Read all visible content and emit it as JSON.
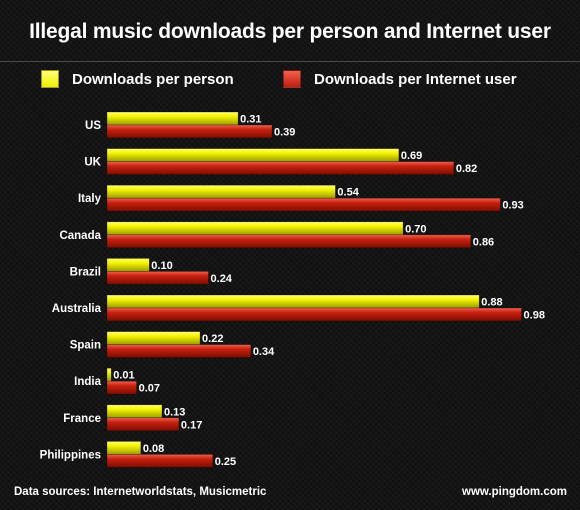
{
  "chart_data": {
    "type": "bar",
    "orientation": "horizontal",
    "title": "Illegal music downloads per person and Internet user",
    "categories": [
      "US",
      "UK",
      "Italy",
      "Canada",
      "Brazil",
      "Australia",
      "Spain",
      "India",
      "France",
      "Philippines"
    ],
    "series": [
      {
        "name": "Downloads per person",
        "color": "#f0f000",
        "values": [
          0.31,
          0.69,
          0.54,
          0.7,
          0.1,
          0.88,
          0.22,
          0.01,
          0.13,
          0.08
        ],
        "labels": [
          "0.31",
          "0.69",
          "0.54",
          "0.70",
          "0.10",
          "0.88",
          "0.22",
          "0.01",
          "0.13",
          "0.08"
        ]
      },
      {
        "name": "Downloads per Internet user",
        "color": "#c21d0e",
        "values": [
          0.39,
          0.82,
          0.93,
          0.86,
          0.24,
          0.98,
          0.34,
          0.07,
          0.17,
          0.25
        ],
        "labels": [
          "0.39",
          "0.82",
          "0.93",
          "0.86",
          "0.24",
          "0.98",
          "0.34",
          "0.07",
          "0.17",
          "0.25"
        ]
      }
    ],
    "xlim": [
      0,
      1
    ],
    "grid": false,
    "legend_position": "top"
  },
  "footer": {
    "source": "Data sources: Internetworldstats, Musicmetric",
    "site": "www.pingdom.com"
  }
}
